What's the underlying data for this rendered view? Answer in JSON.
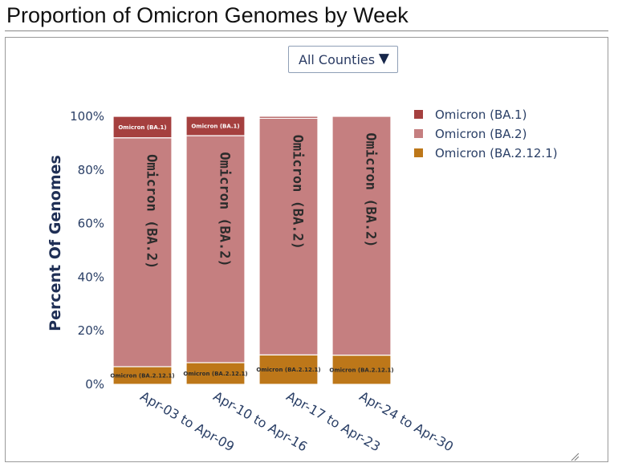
{
  "page": {
    "title": "Proportion of Omicron Genomes by Week"
  },
  "controls": {
    "county_select": {
      "selected": "All Counties",
      "arrow": "▼"
    }
  },
  "colors": {
    "Omicron (BA.1)": "#a5403f",
    "Omicron (BA.2)": "#c57f80",
    "Omicron (BA.2.12.1)": "#bd7719",
    "axis_text": "#2a3f66",
    "segment_border": "#ffffff"
  },
  "chart_data": {
    "type": "bar",
    "stacked": true,
    "title": "",
    "xlabel": "",
    "ylabel": "Percent Of Genomes",
    "ylim": [
      0,
      100
    ],
    "yticks": [
      "0%",
      "20%",
      "40%",
      "60%",
      "80%",
      "100%"
    ],
    "grid": false,
    "legend_position": "top-right",
    "categories": [
      "Apr-03 to Apr-09",
      "Apr-10 to Apr-16",
      "Apr-17 to Apr-23",
      "Apr-24 to Apr-30"
    ],
    "series": [
      {
        "name": "Omicron (BA.2.12.1)",
        "values": [
          6.6,
          8.1,
          11.0,
          10.9
        ],
        "label": "Omicron (BA.2.12.1)"
      },
      {
        "name": "Omicron (BA.2)",
        "values": [
          85.4,
          84.7,
          88.3,
          89.1
        ],
        "label": "Omicron (BA.2)"
      },
      {
        "name": "Omicron (BA.1)",
        "values": [
          8.0,
          7.2,
          0.7,
          0.0
        ],
        "label": "Omicron (BA.1)"
      }
    ],
    "legend": [
      "Omicron (BA.1)",
      "Omicron (BA.2)",
      "Omicron (BA.2.12.1)"
    ]
  }
}
